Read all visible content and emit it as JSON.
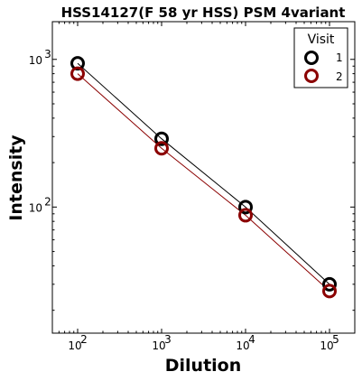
{
  "chart_data": {
    "type": "line",
    "title": "HSS14127(F 58 yr HSS) PSM 4variant",
    "xlabel": "Dilution",
    "ylabel": "Intensity",
    "xscale": "log",
    "yscale": "log",
    "xlim": [
      50,
      200000
    ],
    "ylim": [
      14,
      1800
    ],
    "x": [
      100,
      1000,
      10000,
      100000
    ],
    "xticks": [
      {
        "value": 100,
        "base": "10",
        "exp": "2"
      },
      {
        "value": 1000,
        "base": "10",
        "exp": "3"
      },
      {
        "value": 10000,
        "base": "10",
        "exp": "4"
      },
      {
        "value": 100000,
        "base": "10",
        "exp": "5"
      }
    ],
    "yticks": [
      {
        "value": 100,
        "base": "10",
        "exp": "2"
      },
      {
        "value": 1000,
        "base": "10",
        "exp": "3"
      }
    ],
    "legend": {
      "title": "Visit",
      "placement": "top-right"
    },
    "series": [
      {
        "name": "1",
        "color": "#000000",
        "values": [
          940,
          290,
          100,
          30
        ]
      },
      {
        "name": "2",
        "color": "#8b0000",
        "values": [
          800,
          250,
          88,
          27
        ]
      }
    ]
  }
}
